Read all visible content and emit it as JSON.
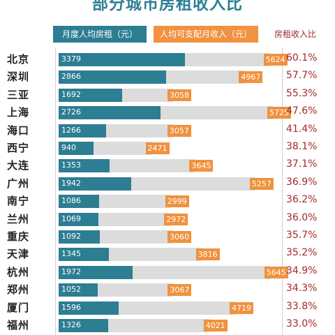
{
  "chart_data": {
    "type": "bar",
    "title": "部分城市房租收入比",
    "series": [
      {
        "name": "月度人均房租（元）",
        "values": [
          3379,
          2866,
          1692,
          2726,
          1266,
          940,
          1353,
          1942,
          1086,
          1069,
          1092,
          1345,
          1972,
          1052,
          1596,
          1326
        ]
      },
      {
        "name": "人均可支配月收入（元）",
        "values": [
          5624,
          4967,
          3058,
          5725,
          3057,
          2471,
          3645,
          5257,
          2999,
          2972,
          3060,
          3816,
          5645,
          3067,
          4719,
          4021
        ]
      },
      {
        "name": "房租收入比",
        "values": [
          "60.1%",
          "57.7%",
          "55.3%",
          "47.6%",
          "41.4%",
          "38.1%",
          "37.1%",
          "36.9%",
          "36.2%",
          "36.0%",
          "35.7%",
          "35.2%",
          "34.9%",
          "34.3%",
          "33.8%",
          "33.0%"
        ]
      }
    ],
    "categories": [
      "北京",
      "深圳",
      "三亚",
      "上海",
      "海口",
      "西宁",
      "大连",
      "广州",
      "南宁",
      "兰州",
      "重庆",
      "天津",
      "杭州",
      "郑州",
      "厦门",
      "福州"
    ],
    "colors": {
      "rent": "#2d7d93",
      "income": "#f0923f",
      "income_bar": "#dcdcdc",
      "ratio": "#a82828"
    }
  }
}
